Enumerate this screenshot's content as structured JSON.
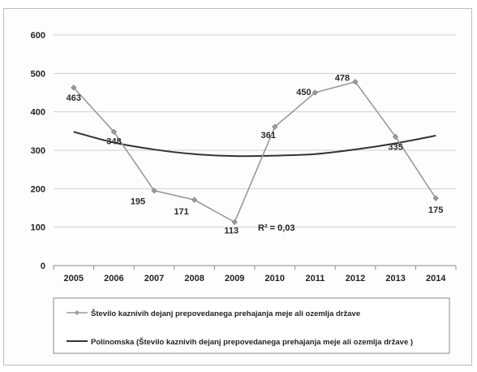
{
  "chart_data": {
    "type": "line",
    "title": "",
    "xlabel": "",
    "ylabel": "",
    "categories": [
      "2005",
      "2006",
      "2007",
      "2008",
      "2009",
      "2010",
      "2011",
      "2012",
      "2013",
      "2014"
    ],
    "ylim": [
      0,
      600
    ],
    "yticks": [
      "0",
      "100",
      "200",
      "300",
      "400",
      "500",
      "600"
    ],
    "grid": true,
    "legend_position": "bottom",
    "series": [
      {
        "name": "Število kaznivih dejanj prepovedanega prehajanja meje ali ozemlja države",
        "values": [
          463,
          348,
          195,
          171,
          113,
          361,
          450,
          478,
          335,
          175
        ],
        "labels": [
          "463",
          "348",
          "195",
          "171",
          "113",
          "361",
          "450",
          "478",
          "335",
          "175"
        ],
        "color": "#9a9a9a",
        "marker": "diamond"
      },
      {
        "name": "Polinomska (Število kaznivih dejanj prepovedanega prehajanja meje ali ozemlja države )",
        "values": [
          348,
          320,
          302,
          290,
          285,
          286,
          290,
          302,
          318,
          338
        ],
        "color": "#333333",
        "kind": "trendline"
      }
    ],
    "annotation": "R² = 0,03"
  }
}
